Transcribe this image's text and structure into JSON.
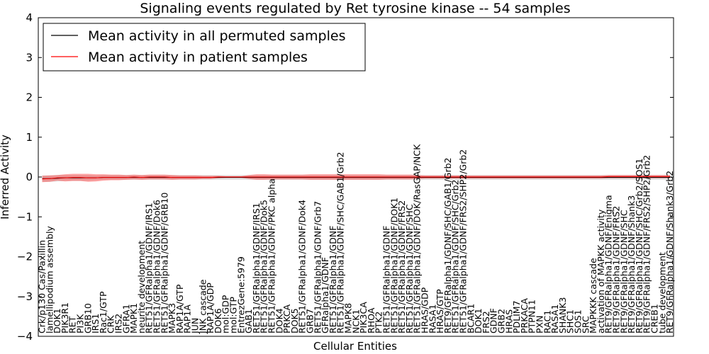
{
  "chart_data": {
    "type": "line",
    "title": "Signaling events regulated by Ret tyrosine kinase -- 54 samples",
    "xlabel": "Cellular Entities",
    "ylabel": "Inferred Activity",
    "ylim": [
      -4,
      4
    ],
    "yticks": [
      "4",
      "3",
      "2",
      "1",
      "0",
      "−1",
      "−2",
      "−3",
      "−4"
    ],
    "ytick_values": [
      4,
      3,
      2,
      1,
      0,
      -1,
      -2,
      -3,
      -4
    ],
    "legend": {
      "position": "top-left",
      "entries": [
        {
          "name": "Mean activity in all permuted samples",
          "color": "#000000"
        },
        {
          "name": "Mean activity in patient samples",
          "color": "#ff0000"
        }
      ]
    },
    "categories": [
      "Crk/p130 Cas/Paxillin",
      "lamellipodium assembly",
      "DOK1",
      "PIK3R1",
      "RET",
      "PI3K",
      "GRB10",
      "IRS1",
      "Rac1/GTP",
      "CRK",
      "IRS2",
      "GFRA1",
      "MAPK1",
      "neurite development",
      "RET51/GFRalpha1/GDNF/IRS1",
      "RET51/GFRalpha1/GDNF/Dok6",
      "RET51/GFRalpha1/GDNF/GRB10",
      "MAPK3",
      "RAP1A/GTP",
      "RAP1A",
      "JUN",
      "JNK cascade",
      "RAP1A/GDP",
      "DOK6",
      "mol:GDP",
      "mol:GTP",
      "EntrezGene:5979",
      "GAB1",
      "RET51/GFRalpha1/GDNF/IRS1",
      "RET51/GFRalpha1/GDNF/Dok5",
      "RET51/GFRalpha1/GDNF/PKC alpha",
      "DOK4",
      "PRKCA",
      "DOK5",
      "RET51/GFRalpha1/GDNF/Dok4",
      "GRB7",
      "RET51/GFRalpha1/GDNF/Grb7",
      "GFRalpha1/GDNF",
      "RET51/GFRalpha1/GDNF",
      "RET51/GFRalpha1/GDNF/SHC/GAB1/Grb2",
      "MAPK8",
      "NCK1",
      "PIK3CA",
      "RHOA",
      "PTK2",
      "RET51/GFRalpha1/GDNF",
      "RET51/GFRalpha1/GDNF/DOK1",
      "RET51/GFRalpha1/GDNF/FRS2",
      "RET51/GFRalpha1/GDNF/SHC",
      "RET51/GFRalpha1/GDNF/DOK/RasGAP/NCK",
      "HRAS/GDP",
      "RASA1",
      "HRAS/GTP",
      "RET9/GFRalpha1/GDNF/SHC/GAB1/Grb2",
      "RET51/GFRalpha1/GDNF/SHC/Grb2",
      "RET51/GFRalpha1/GDNF/FRS2/SHP2/Grb2",
      "BCAR1",
      "DOK1",
      "FRS2",
      "GDNF",
      "GRB2",
      "HRAS",
      "PDLIM7",
      "PRKACA",
      "PTPN11",
      "PXN",
      "RAC1",
      "RASA1",
      "SHANK3",
      "SHC1",
      "SOS1",
      "SRC",
      "MAPKKK cascade",
      "activation of MAPKK activity",
      "RET9/GFRalpha1/GDNF/Enigma",
      "RET9/GFRalpha1/GDNF/FRS2",
      "RET9/GFRalpha1/GDNF/SHC",
      "RET9/GFRalpha1/GDNF/Shank3",
      "RET9/GFRalpha1/GDNF/SHC/Grb2/SOS1",
      "RET9/GFRalpha1/GDNF/FRS2/SHP2/Grb2",
      "CREB1",
      "tube development",
      "RET9/GFRalpha1/GDNF/Shank3/Grb2"
    ],
    "series": [
      {
        "name": "Mean activity in all permuted samples",
        "color": "#000000",
        "values": [
          -0.04,
          -0.04,
          -0.03,
          -0.02,
          -0.02,
          -0.02,
          -0.02,
          -0.02,
          -0.01,
          -0.01,
          -0.01,
          -0.01,
          -0.01,
          -0.01,
          -0.01,
          -0.01,
          -0.01,
          -0.01,
          -0.01,
          -0.01,
          -0.01,
          -0.01,
          -0.01,
          -0.01,
          -0.01,
          -0.01,
          -0.01,
          -0.01,
          -0.01,
          -0.01,
          -0.01,
          -0.01,
          -0.01,
          -0.01,
          -0.01,
          -0.01,
          -0.01,
          -0.01,
          -0.01,
          -0.01,
          -0.01,
          -0.01,
          -0.01,
          -0.01,
          -0.01,
          -0.01,
          -0.01,
          -0.01,
          -0.01,
          -0.01,
          -0.01,
          -0.01,
          -0.01,
          -0.01,
          -0.01,
          -0.01,
          -0.01,
          -0.01,
          -0.01,
          -0.01,
          -0.01,
          -0.01,
          -0.01,
          -0.01,
          -0.01,
          -0.01,
          -0.01,
          -0.01,
          -0.01,
          -0.01,
          -0.01,
          -0.01,
          -0.01,
          -0.01,
          -0.01,
          -0.01,
          -0.01,
          -0.01,
          -0.01,
          -0.01,
          -0.01,
          -0.01,
          -0.01
        ],
        "band": [
          0.08,
          0.08,
          0.08,
          0.07,
          0.07,
          0.07,
          0.07,
          0.06,
          0.06,
          0.06,
          0.06,
          0.06,
          0.06,
          0.06,
          0.06,
          0.06,
          0.06,
          0.06,
          0.06,
          0.06,
          0.06,
          0.06,
          0.06,
          0.06,
          0.06,
          0.06,
          0.06,
          0.06,
          0.06,
          0.06,
          0.06,
          0.06,
          0.06,
          0.06,
          0.06,
          0.06,
          0.06,
          0.06,
          0.06,
          0.06,
          0.06,
          0.06,
          0.06,
          0.06,
          0.06,
          0.06,
          0.06,
          0.06,
          0.06,
          0.06,
          0.06,
          0.06,
          0.06,
          0.06,
          0.06,
          0.06,
          0.06,
          0.06,
          0.06,
          0.06,
          0.06,
          0.06,
          0.06,
          0.06,
          0.06,
          0.06,
          0.06,
          0.06,
          0.06,
          0.06,
          0.06,
          0.06,
          0.06,
          0.06,
          0.06,
          0.06,
          0.06,
          0.06,
          0.06,
          0.06,
          0.06,
          0.06,
          0.06
        ]
      },
      {
        "name": "Mean activity in patient samples",
        "color": "#ff0000",
        "values": [
          -0.05,
          -0.04,
          -0.02,
          -0.02,
          -0.01,
          -0.01,
          -0.02,
          -0.02,
          -0.01,
          -0.01,
          -0.01,
          -0.01,
          0.0,
          -0.01,
          0.0,
          0.0,
          0.0,
          -0.01,
          -0.01,
          -0.01,
          -0.01,
          -0.01,
          -0.01,
          0.0,
          0.0,
          0.0,
          0.0,
          0.0,
          0.0,
          0.0,
          0.0,
          0.0,
          0.0,
          0.0,
          0.0,
          0.0,
          0.0,
          0.0,
          0.0,
          0.0,
          0.0,
          0.0,
          0.0,
          0.0,
          0.0,
          0.0,
          0.0,
          0.0,
          0.0,
          0.0,
          0.0,
          0.0,
          0.0,
          0.0,
          0.0,
          0.0,
          0.0,
          0.0,
          0.0,
          0.0,
          0.0,
          0.0,
          0.0,
          0.0,
          0.0,
          0.0,
          0.0,
          0.0,
          0.0,
          0.0,
          0.0,
          0.0,
          0.0,
          0.0,
          0.01,
          0.01,
          0.01,
          0.01,
          0.01,
          0.01,
          0.01,
          0.01,
          0.01
        ],
        "band": [
          0.08,
          0.08,
          0.07,
          0.09,
          0.09,
          0.09,
          0.1,
          0.09,
          0.08,
          0.07,
          0.07,
          0.06,
          0.06,
          0.06,
          0.06,
          0.06,
          0.06,
          0.06,
          0.05,
          0.05,
          0.05,
          0.04,
          0.04,
          0.03,
          0.02,
          0.02,
          0.02,
          0.05,
          0.07,
          0.07,
          0.06,
          0.06,
          0.06,
          0.06,
          0.06,
          0.07,
          0.07,
          0.07,
          0.07,
          0.07,
          0.07,
          0.07,
          0.07,
          0.07,
          0.07,
          0.06,
          0.06,
          0.06,
          0.06,
          0.05,
          0.04,
          0.04,
          0.04,
          0.04,
          0.04,
          0.04,
          0.04,
          0.04,
          0.04,
          0.04,
          0.04,
          0.04,
          0.04,
          0.04,
          0.04,
          0.04,
          0.04,
          0.04,
          0.04,
          0.04,
          0.04,
          0.04,
          0.04,
          0.04,
          0.04,
          0.04,
          0.04,
          0.04,
          0.04,
          0.04,
          0.04,
          0.04,
          0.04
        ]
      }
    ]
  }
}
